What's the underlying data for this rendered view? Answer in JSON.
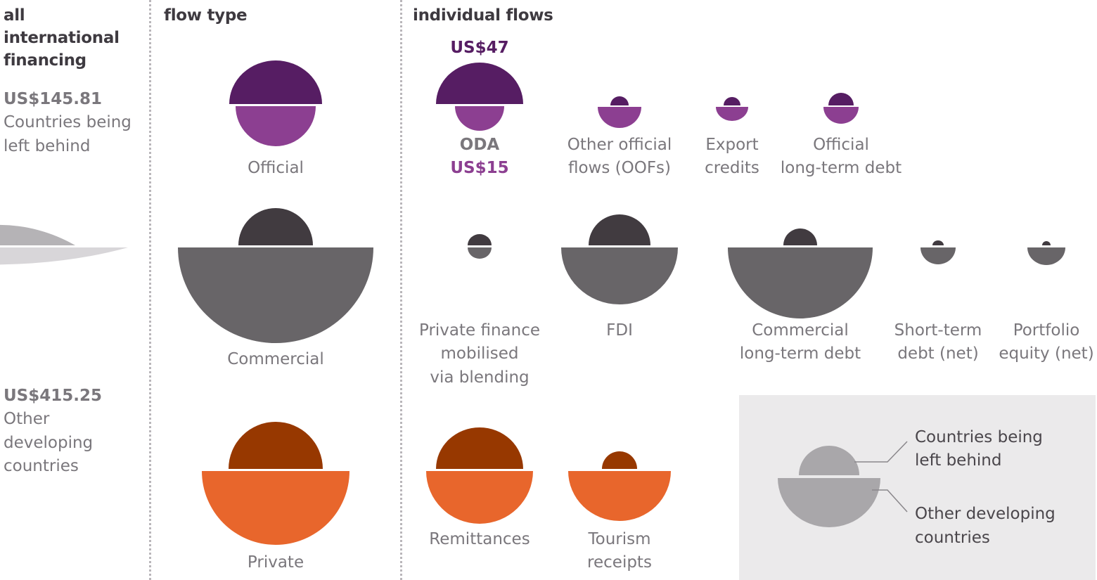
{
  "headers": {
    "all": "all international financing",
    "flow_type": "flow type",
    "individual": "individual flows"
  },
  "totals": {
    "lbl_value": "US$145.81",
    "lbl_text_1": "Countries being",
    "lbl_text_2": "left behind",
    "other_value": "US$415.25",
    "other_text_1": "Other",
    "other_text_2": "developing",
    "other_text_3": "countries"
  },
  "flow_types": {
    "official": "Official",
    "commercial": "Commercial",
    "private": "Private"
  },
  "flows": {
    "oda": {
      "name": "ODA",
      "top_value": "US$47",
      "bottom_value": "US$15"
    },
    "oofs": {
      "line1": "Other official",
      "line2": "flows (OOFs)"
    },
    "export": {
      "line1": "Export",
      "line2": "credits"
    },
    "official_debt": {
      "line1": "Official",
      "line2": "long-term debt"
    },
    "blending": {
      "line1": "Private finance",
      "line2": "mobilised",
      "line3": "via blending"
    },
    "fdi": {
      "line1": "FDI"
    },
    "commercial_debt": {
      "line1": "Commercial",
      "line2": "long-term debt"
    },
    "short_term": {
      "line1": "Short-term",
      "line2": "debt (net)"
    },
    "portfolio": {
      "line1": "Portfolio",
      "line2": "equity (net)"
    },
    "remittances": {
      "line1": "Remittances"
    },
    "tourism": {
      "line1": "Tourism",
      "line2": "receipts"
    }
  },
  "legend": {
    "lbl_1": "Countries being",
    "lbl_2": "left behind",
    "other_1": "Other developing",
    "other_2": "countries"
  },
  "colors": {
    "official_dark": "#561d63",
    "official_light": "#8c3f91",
    "commercial_dark": "#413b40",
    "commercial_light": "#686568",
    "private_dark": "#973800",
    "private_light": "#e8662c",
    "total_top": "#b5b3b6",
    "total_bottom": "#d8d6d9",
    "legend_shape": "#a9a7aa",
    "label_purple": "#561d63",
    "label_purple_light": "#8c3f91"
  }
}
